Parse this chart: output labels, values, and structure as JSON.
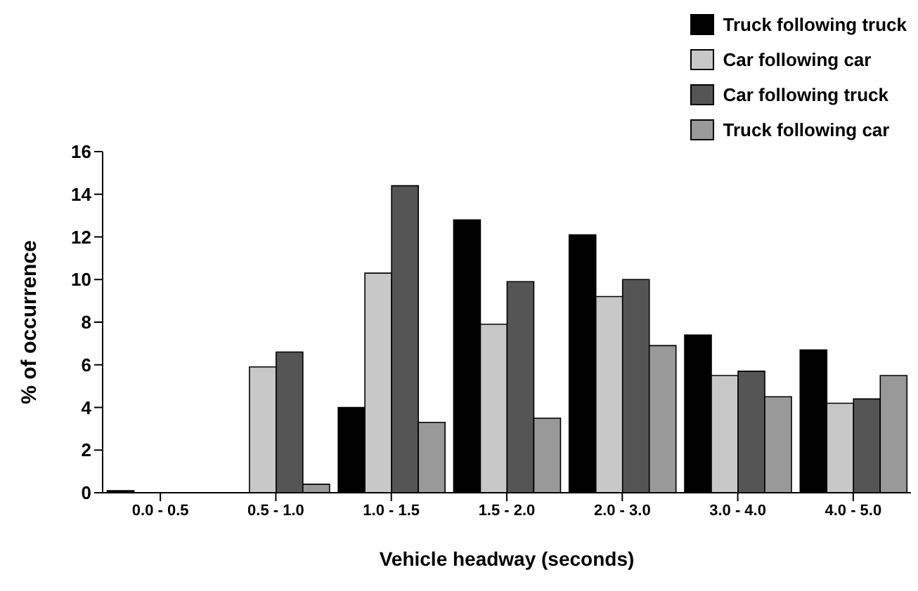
{
  "chart_data": {
    "type": "bar",
    "xlabel": "Vehicle headway (seconds)",
    "ylabel": "% of occurrence",
    "categories": [
      "0.0 - 0.5",
      "0.5 - 1.0",
      "1.0 - 1.5",
      "1.5 - 2.0",
      "2.0 - 3.0",
      "3.0 - 4.0",
      "4.0 - 5.0"
    ],
    "series": [
      {
        "name": "Truck following truck",
        "color": "#000000",
        "values": [
          0.1,
          0,
          4.0,
          12.8,
          12.1,
          7.4,
          6.7
        ]
      },
      {
        "name": "Car following car",
        "color": "#c8c8c8",
        "values": [
          0,
          5.9,
          10.3,
          7.9,
          9.2,
          5.5,
          4.2
        ]
      },
      {
        "name": "Car following truck",
        "color": "#555555",
        "values": [
          0,
          6.6,
          14.4,
          9.9,
          10.0,
          5.7,
          4.4
        ]
      },
      {
        "name": "Truck following car",
        "color": "#999999",
        "values": [
          0,
          0.4,
          3.3,
          3.5,
          6.9,
          4.5,
          5.5
        ]
      }
    ],
    "ylim": [
      0,
      16
    ],
    "yticks": [
      0,
      2,
      4,
      6,
      8,
      10,
      12,
      14,
      16
    ],
    "grid": false,
    "legend": "top right"
  }
}
